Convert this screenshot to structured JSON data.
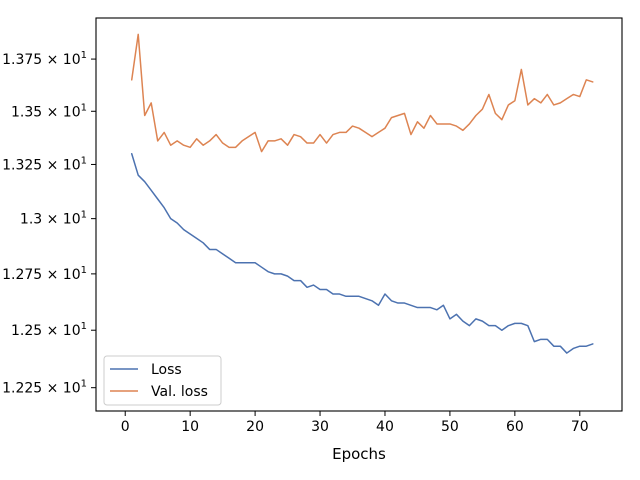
{
  "chart_data": {
    "type": "line",
    "title": "",
    "xlabel": "Epochs",
    "ylabel": "",
    "xlim": [
      -4.5,
      76.5
    ],
    "ylim": [
      12.15,
      13.95
    ],
    "yscale": "log",
    "legend_position": "lower-left",
    "x_ticks": [
      0,
      10,
      20,
      30,
      40,
      50,
      60,
      70
    ],
    "x_tick_labels": [
      "0",
      "10",
      "20",
      "30",
      "40",
      "50",
      "60",
      "70"
    ],
    "y_ticks": [
      12.25,
      12.5,
      12.75,
      13.0,
      13.25,
      13.5,
      13.75
    ],
    "y_tick_labels": [
      {
        "mantissa": "1.225 × 10",
        "exp": "1"
      },
      {
        "mantissa": "1.25 × 10",
        "exp": "1"
      },
      {
        "mantissa": "1.275 × 10",
        "exp": "1"
      },
      {
        "mantissa": "1.3 × 10",
        "exp": "1"
      },
      {
        "mantissa": "1.325 × 10",
        "exp": "1"
      },
      {
        "mantissa": "1.35 × 10",
        "exp": "1"
      },
      {
        "mantissa": "1.375 × 10",
        "exp": "1"
      }
    ],
    "x": [
      1,
      2,
      3,
      4,
      5,
      6,
      7,
      8,
      9,
      10,
      11,
      12,
      13,
      14,
      15,
      16,
      17,
      18,
      19,
      20,
      21,
      22,
      23,
      24,
      25,
      26,
      27,
      28,
      29,
      30,
      31,
      32,
      33,
      34,
      35,
      36,
      37,
      38,
      39,
      40,
      41,
      42,
      43,
      44,
      45,
      46,
      47,
      48,
      49,
      50,
      51,
      52,
      53,
      54,
      55,
      56,
      57,
      58,
      59,
      60,
      61,
      62,
      63,
      64,
      65,
      66,
      67,
      68,
      69,
      70,
      71,
      72
    ],
    "series": [
      {
        "name": "Loss",
        "color": "#4c72b0",
        "values": [
          13.3,
          13.2,
          13.17,
          13.13,
          13.09,
          13.05,
          13.0,
          12.98,
          12.95,
          12.93,
          12.91,
          12.89,
          12.86,
          12.86,
          12.84,
          12.82,
          12.8,
          12.8,
          12.8,
          12.8,
          12.78,
          12.76,
          12.75,
          12.75,
          12.74,
          12.72,
          12.72,
          12.69,
          12.7,
          12.68,
          12.68,
          12.66,
          12.66,
          12.65,
          12.65,
          12.65,
          12.64,
          12.63,
          12.61,
          12.66,
          12.63,
          12.62,
          12.62,
          12.61,
          12.6,
          12.6,
          12.6,
          12.59,
          12.61,
          12.55,
          12.57,
          12.54,
          12.52,
          12.55,
          12.54,
          12.52,
          12.52,
          12.5,
          12.52,
          12.53,
          12.53,
          12.52,
          12.45,
          12.46,
          12.46,
          12.43,
          12.43,
          12.4,
          12.42,
          12.43,
          12.43,
          12.44
        ]
      },
      {
        "name": "Val. loss",
        "color": "#dd8452",
        "values": [
          13.65,
          13.87,
          13.48,
          13.54,
          13.36,
          13.4,
          13.34,
          13.36,
          13.34,
          13.33,
          13.37,
          13.34,
          13.36,
          13.39,
          13.35,
          13.33,
          13.33,
          13.36,
          13.38,
          13.4,
          13.31,
          13.36,
          13.36,
          13.37,
          13.34,
          13.39,
          13.38,
          13.35,
          13.35,
          13.39,
          13.35,
          13.39,
          13.4,
          13.4,
          13.43,
          13.42,
          13.4,
          13.38,
          13.4,
          13.42,
          13.47,
          13.48,
          13.49,
          13.39,
          13.45,
          13.42,
          13.48,
          13.44,
          13.44,
          13.44,
          13.43,
          13.41,
          13.44,
          13.48,
          13.51,
          13.58,
          13.49,
          13.46,
          13.53,
          13.55,
          13.7,
          13.53,
          13.56,
          13.54,
          13.58,
          13.53,
          13.54,
          13.56,
          13.58,
          13.57,
          13.65,
          13.64
        ]
      }
    ]
  }
}
